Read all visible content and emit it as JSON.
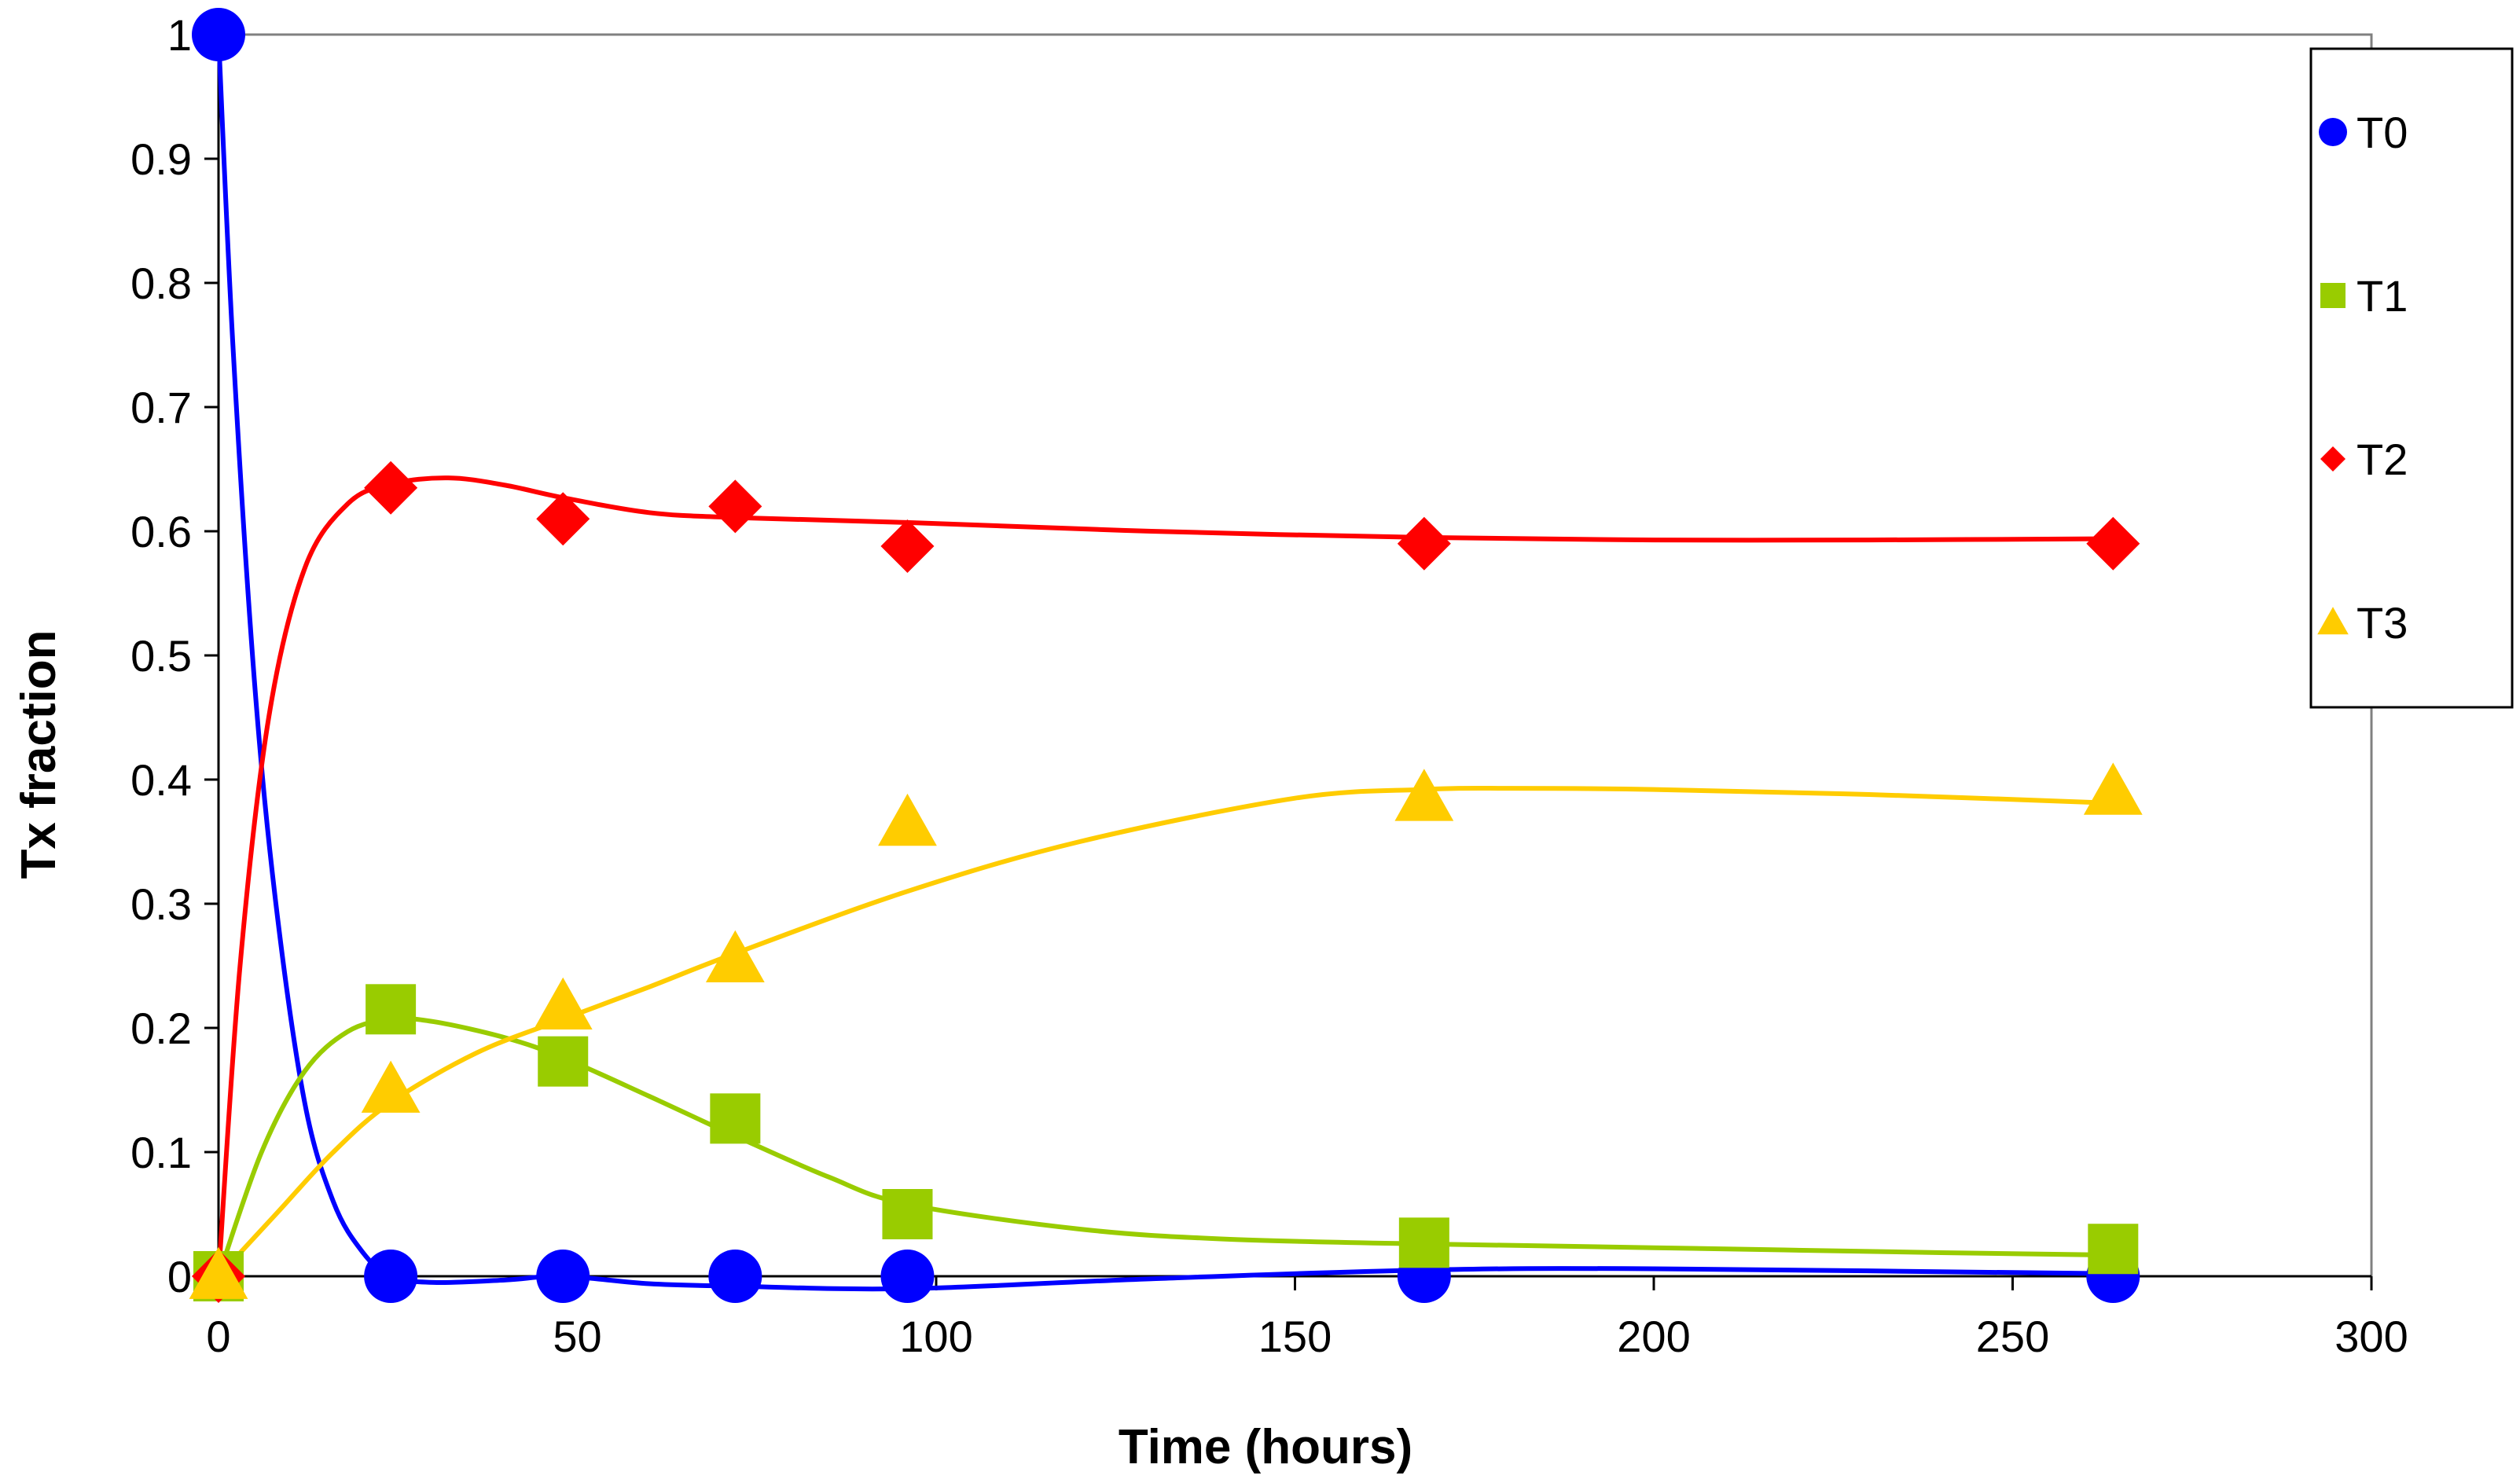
{
  "chart_data": {
    "type": "scatter",
    "title": "",
    "xlabel": "Time (hours)",
    "ylabel": "Tx  fraction",
    "xlim": [
      0,
      300
    ],
    "ylim": [
      0,
      1
    ],
    "xticks": [
      0,
      50,
      100,
      150,
      200,
      250,
      300
    ],
    "yticks": [
      0,
      0.1,
      0.2,
      0.3,
      0.4,
      0.5,
      0.6,
      0.7,
      0.8,
      0.9,
      1
    ],
    "x_tick_labels": [
      "0",
      "50",
      "100",
      "150",
      "200",
      "250",
      "300"
    ],
    "y_tick_labels": [
      "0",
      "0.1",
      "0.2",
      "0.3",
      "0.4",
      "0.5",
      "0.6",
      "0.7",
      "0.8",
      "0.9",
      "1"
    ],
    "grid": false,
    "legend_position": "top-right",
    "trendlines": "smoothed curves through each series",
    "series": [
      {
        "name": "T0",
        "marker": "circle",
        "color": "#0000FF",
        "x": [
          0,
          24,
          48,
          72,
          96,
          168,
          264
        ],
        "y": [
          1.0,
          0.0,
          0.0,
          0.0,
          0.0,
          0.0,
          0.0
        ],
        "curve": [
          [
            0,
            1.0
          ],
          [
            2,
            0.75
          ],
          [
            5,
            0.48
          ],
          [
            8,
            0.3
          ],
          [
            12,
            0.14
          ],
          [
            16,
            0.06
          ],
          [
            20,
            0.02
          ],
          [
            24,
            0.0
          ],
          [
            30,
            -0.005
          ],
          [
            40,
            -0.003
          ],
          [
            48,
            0.0
          ],
          [
            60,
            -0.006
          ],
          [
            72,
            -0.008
          ],
          [
            96,
            -0.01
          ],
          [
            130,
            -0.002
          ],
          [
            168,
            0.005
          ],
          [
            200,
            0.006
          ],
          [
            264,
            0.002
          ]
        ]
      },
      {
        "name": "T1",
        "marker": "square",
        "color": "#99CC00",
        "x": [
          0,
          24,
          48,
          72,
          96,
          168,
          264
        ],
        "y": [
          0.0,
          0.215,
          0.173,
          0.127,
          0.05,
          0.027,
          0.022
        ],
        "curve": [
          [
            0,
            0.0
          ],
          [
            6,
            0.1
          ],
          [
            12,
            0.165
          ],
          [
            18,
            0.197
          ],
          [
            24,
            0.207
          ],
          [
            30,
            0.205
          ],
          [
            40,
            0.192
          ],
          [
            48,
            0.176
          ],
          [
            60,
            0.145
          ],
          [
            72,
            0.113
          ],
          [
            85,
            0.08
          ],
          [
            96,
            0.058
          ],
          [
            120,
            0.038
          ],
          [
            140,
            0.03
          ],
          [
            168,
            0.026
          ],
          [
            200,
            0.023
          ],
          [
            240,
            0.019
          ],
          [
            264,
            0.017
          ]
        ]
      },
      {
        "name": "T2",
        "marker": "diamond",
        "color": "#FF0000",
        "x": [
          0,
          24,
          48,
          72,
          96,
          168,
          264
        ],
        "y": [
          0.0,
          0.635,
          0.61,
          0.62,
          0.588,
          0.59,
          0.59
        ],
        "curve": [
          [
            0,
            0.0
          ],
          [
            3,
            0.25
          ],
          [
            7,
            0.45
          ],
          [
            12,
            0.57
          ],
          [
            18,
            0.622
          ],
          [
            24,
            0.638
          ],
          [
            32,
            0.643
          ],
          [
            40,
            0.637
          ],
          [
            48,
            0.627
          ],
          [
            60,
            0.615
          ],
          [
            72,
            0.611
          ],
          [
            96,
            0.607
          ],
          [
            130,
            0.6
          ],
          [
            168,
            0.595
          ],
          [
            200,
            0.593
          ],
          [
            230,
            0.593
          ],
          [
            264,
            0.594
          ]
        ]
      },
      {
        "name": "T3",
        "marker": "triangle",
        "color": "#FFCC00",
        "x": [
          0,
          24,
          48,
          72,
          96,
          168,
          264
        ],
        "y": [
          0.0,
          0.15,
          0.217,
          0.255,
          0.365,
          0.385,
          0.39
        ],
        "curve": [
          [
            0,
            0.0
          ],
          [
            8,
            0.05
          ],
          [
            16,
            0.1
          ],
          [
            24,
            0.14
          ],
          [
            36,
            0.18
          ],
          [
            48,
            0.207
          ],
          [
            60,
            0.233
          ],
          [
            72,
            0.26
          ],
          [
            96,
            0.31
          ],
          [
            120,
            0.35
          ],
          [
            150,
            0.385
          ],
          [
            168,
            0.392
          ],
          [
            180,
            0.393
          ],
          [
            200,
            0.392
          ],
          [
            230,
            0.388
          ],
          [
            264,
            0.381
          ]
        ]
      }
    ]
  }
}
